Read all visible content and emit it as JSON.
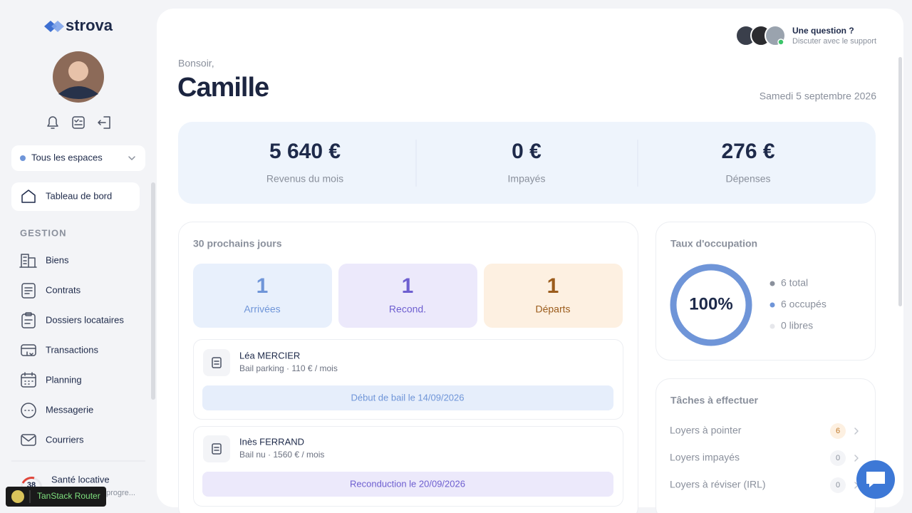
{
  "sidebar": {
    "brand": "strova",
    "space_selector": "Tous les espaces",
    "nav_active": "Tableau de bord",
    "section": "GESTION",
    "nav": [
      "Biens",
      "Contrats",
      "Dossiers locataires",
      "Transactions",
      "Planning",
      "Messagerie",
      "Courriers"
    ],
    "health": {
      "title": "Santé locative",
      "score": "38",
      "subtitle": "progre..."
    },
    "devtool": "TanStack Router"
  },
  "header": {
    "support_title": "Une question ?",
    "support_subtitle": "Discuter avec le support",
    "greeting": "Bonsoir,",
    "name": "Camille",
    "date": "Samedi 5 septembre 2026"
  },
  "kpis": [
    {
      "value": "5 640 €",
      "label": "Revenus du mois"
    },
    {
      "value": "0 €",
      "label": "Impayés"
    },
    {
      "value": "276 €",
      "label": "Dépenses"
    }
  ],
  "upcoming": {
    "title": "30 prochains jours",
    "counters": [
      {
        "value": 1,
        "label": "Arrivées"
      },
      {
        "value": 1,
        "label": "Recond."
      },
      {
        "value": 1,
        "label": "Départs"
      }
    ],
    "items": [
      {
        "name": "Léa MERCIER",
        "detail": "Bail parking · 110 € / mois",
        "badge": "Début de bail le 14/09/2026"
      },
      {
        "name": "Inès FERRAND",
        "detail": "Bail nu · 1560 € / mois",
        "badge": "Reconduction le 20/09/2026"
      }
    ]
  },
  "occupancy": {
    "title": "Taux d'occupation",
    "percent": "100%",
    "legend": [
      "6 total",
      "6 occupés",
      "0 libres"
    ]
  },
  "tasks": {
    "title": "Tâches à effectuer",
    "items": [
      {
        "label": "Loyers à pointer",
        "count": 6
      },
      {
        "label": "Loyers impayés",
        "count": 0
      },
      {
        "label": "Loyers à réviser (IRL)",
        "count": 0
      }
    ]
  }
}
